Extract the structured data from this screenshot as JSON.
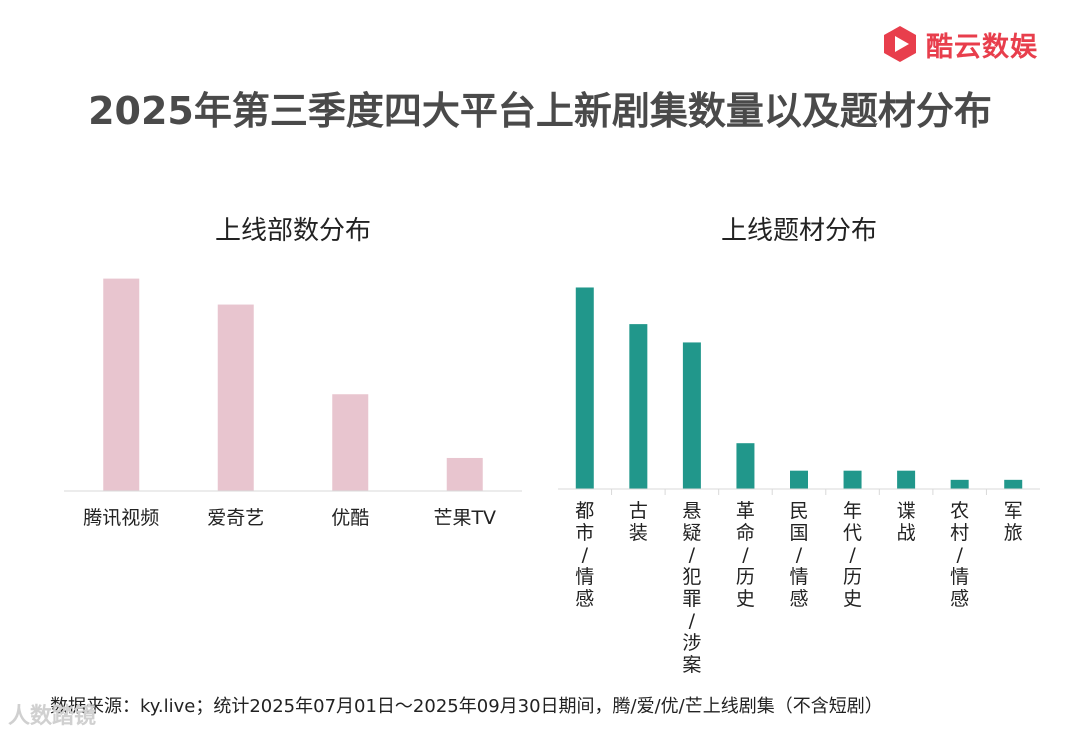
{
  "logo": {
    "text": "酷云数娱",
    "color": "#e83e4c"
  },
  "title": "2025年第三季度四大平台上新剧集数量以及题材分布",
  "chart_data": [
    {
      "type": "bar",
      "title": "上线部数分布",
      "categories": [
        "腾讯视频",
        "爱奇艺",
        "优酷",
        "芒果TV"
      ],
      "values": [
        90,
        79,
        41,
        14
      ],
      "ylim": [
        0,
        100
      ],
      "grid": false,
      "color": "#e8c5cf"
    },
    {
      "type": "bar",
      "title": "上线题材分布",
      "categories": [
        "都市/情感",
        "古装",
        "悬疑/犯罪/涉案",
        "革命/历史",
        "民国/情感",
        "年代/历史",
        "谍战",
        "农村/情感",
        "军旅"
      ],
      "values": [
        88,
        72,
        64,
        20,
        8,
        8,
        8,
        4,
        4
      ],
      "ylim": [
        0,
        100
      ],
      "grid": false,
      "color": "#21978b"
    }
  ],
  "footer": "数据来源：ky.live；统计2025年07月01日～2025年09月30日期间，腾/爱/优/芒上线剧集（不含短剧）",
  "watermark": "人数踏镜"
}
